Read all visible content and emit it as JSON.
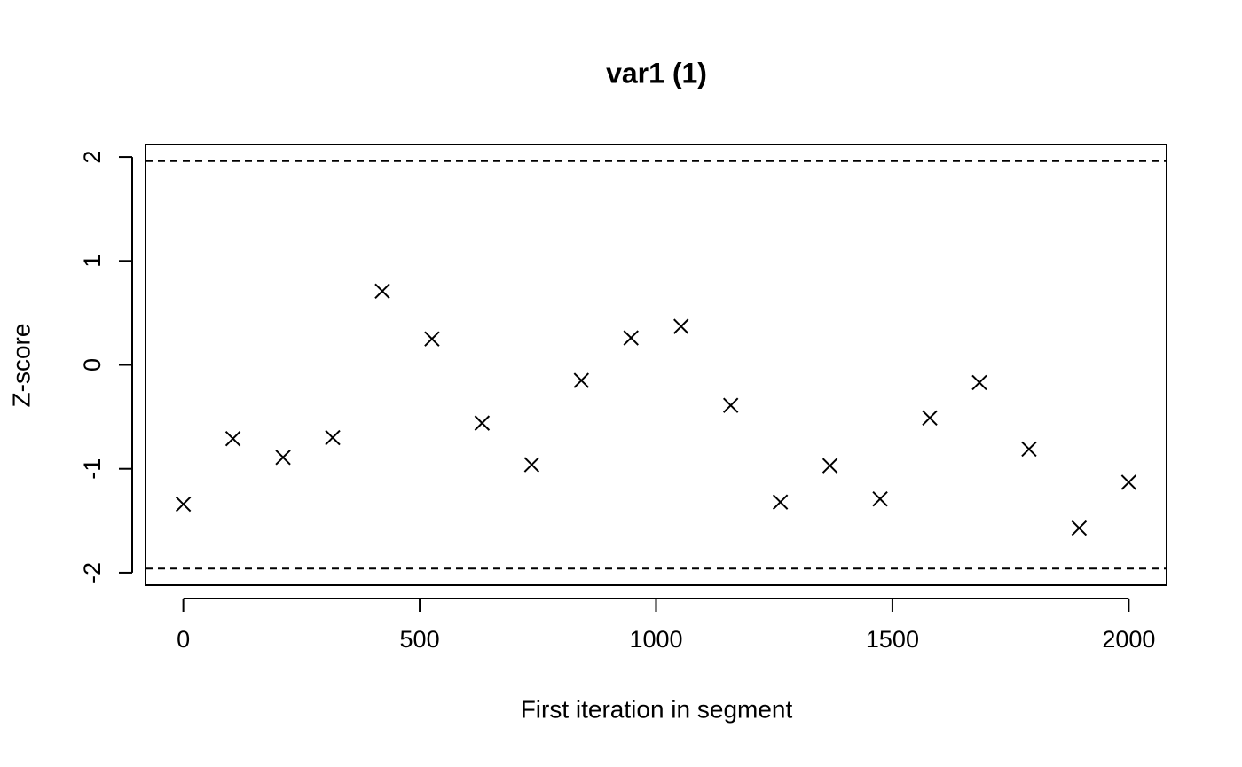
{
  "chart_data": {
    "type": "scatter",
    "title": "var1 (1)",
    "x_label": "First iteration in segment",
    "y_label": "Z-score",
    "x": [
      0,
      105,
      211,
      316,
      421,
      526,
      632,
      737,
      842,
      947,
      1053,
      1158,
      1263,
      1368,
      1474,
      1579,
      1684,
      1789,
      1895,
      2000
    ],
    "values": [
      -1.34,
      -0.71,
      -0.89,
      -0.7,
      0.71,
      0.25,
      -0.56,
      -0.96,
      -0.15,
      0.26,
      0.37,
      -0.39,
      -1.32,
      -0.97,
      -1.29,
      -0.51,
      -0.17,
      -0.81,
      -1.57,
      -1.13
    ],
    "color": "#000000",
    "marker": "x",
    "xlim": [
      -80,
      2080
    ],
    "xticks": [
      0,
      500,
      1000,
      1500,
      2000
    ],
    "ylim": [
      -2.12,
      2.12
    ],
    "yticks": [
      -2,
      -1,
      0,
      1,
      2
    ],
    "reference_lines": [
      1.96,
      -1.96
    ]
  }
}
